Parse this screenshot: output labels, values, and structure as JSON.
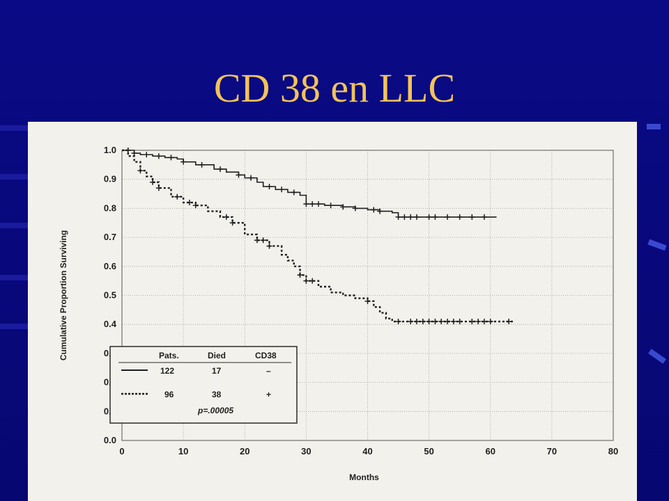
{
  "slide": {
    "title": "CD 38 en LLC",
    "title_color": "#f2c35a",
    "background_color": "#08087a"
  },
  "chart_data": {
    "type": "line",
    "subtype": "kaplan-meier",
    "xlabel": "Months",
    "ylabel": "Cumulative Proportion Surviving",
    "xlim": [
      0,
      80
    ],
    "ylim": [
      0,
      1.0
    ],
    "x_ticks": [
      "0",
      "10",
      "20",
      "30",
      "40",
      "50",
      "60",
      "70",
      "80"
    ],
    "y_ticks": [
      "0.0",
      "0.1",
      "0.2",
      "0.3",
      "0.4",
      "0.5",
      "0.6",
      "0.7",
      "0.8",
      "0.9",
      "1.0"
    ],
    "grid": true,
    "legend": {
      "placement": "bottom-left",
      "headers": [
        "Pats.",
        "Died",
        "CD38"
      ],
      "rows": [
        {
          "style": "solid",
          "pats": "122",
          "died": "17",
          "cd38": "–"
        },
        {
          "style": "dashed",
          "pats": "96",
          "died": "38",
          "cd38": "+"
        }
      ],
      "pvalue": "p=.00005"
    },
    "series": [
      {
        "style": "solid",
        "x": [
          0,
          2,
          3,
          5,
          7,
          9,
          10,
          12,
          15,
          17,
          19,
          20,
          22,
          23,
          25,
          27,
          29,
          30,
          33,
          36,
          38,
          40,
          42,
          44,
          45,
          50,
          55,
          60,
          61
        ],
        "y": [
          1.0,
          0.99,
          0.985,
          0.98,
          0.975,
          0.97,
          0.96,
          0.95,
          0.935,
          0.925,
          0.915,
          0.905,
          0.89,
          0.875,
          0.865,
          0.855,
          0.845,
          0.815,
          0.81,
          0.805,
          0.8,
          0.795,
          0.79,
          0.785,
          0.77,
          0.77,
          0.77,
          0.77,
          0.77
        ],
        "censor_x": [
          1,
          2,
          4,
          6,
          8,
          10,
          13,
          16,
          19,
          21,
          24,
          26,
          28,
          30,
          31,
          32,
          34,
          36,
          38,
          41,
          42,
          45,
          46,
          47,
          48,
          50,
          51,
          53,
          55,
          57,
          59
        ]
      },
      {
        "style": "dashed",
        "x": [
          0,
          1,
          2,
          3,
          4,
          5,
          6,
          8,
          10,
          12,
          14,
          16,
          18,
          20,
          22,
          24,
          26,
          27,
          28,
          29,
          30,
          32,
          34,
          36,
          38,
          40,
          41,
          42,
          43,
          44,
          45,
          50,
          55,
          60,
          64
        ],
        "y": [
          1.0,
          0.98,
          0.96,
          0.93,
          0.91,
          0.89,
          0.87,
          0.84,
          0.82,
          0.81,
          0.79,
          0.77,
          0.75,
          0.71,
          0.69,
          0.67,
          0.64,
          0.62,
          0.6,
          0.57,
          0.55,
          0.53,
          0.51,
          0.5,
          0.49,
          0.48,
          0.46,
          0.44,
          0.42,
          0.41,
          0.41,
          0.41,
          0.41,
          0.41,
          0.41
        ],
        "censor_x": [
          3,
          5,
          6,
          9,
          11,
          12,
          17,
          18,
          22,
          23,
          24,
          29,
          30,
          31,
          40,
          45,
          47,
          48,
          49,
          50,
          51,
          52,
          53,
          54,
          55,
          57,
          58,
          59,
          60,
          63
        ]
      }
    ]
  }
}
